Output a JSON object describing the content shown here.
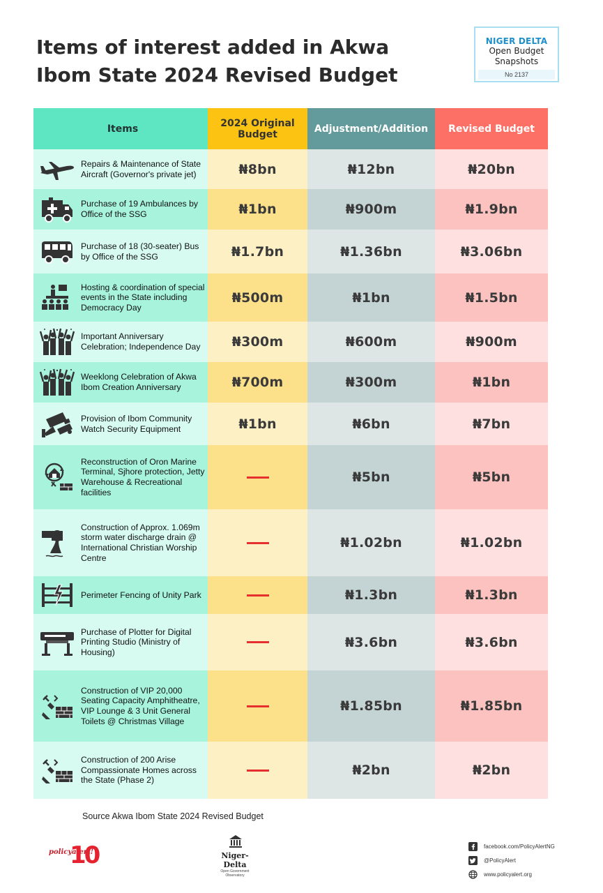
{
  "title": {
    "line1": "Items of interest added in Akwa",
    "line2": "Ibom State 2024 Revised Budget"
  },
  "badge": {
    "line1": "NIGER DELTA",
    "line2": "Open Budget",
    "line3": "Snapshots",
    "number": "No 2137"
  },
  "table": {
    "headers": [
      "Items",
      "2024 Original Budget",
      "Adjustment/Addition",
      "Revised Budget"
    ],
    "rows": [
      {
        "icon": "private-jet-icon",
        "item": "Repairs & Maintenance of State Aircraft (Governor's private jet)",
        "original": "₦8bn",
        "adjustment": "₦12bn",
        "revised": "₦20bn"
      },
      {
        "icon": "ambulance-icon",
        "item": "Purchase of 19 Ambulances by Office of the SSG",
        "original": "₦1bn",
        "adjustment": "₦900m",
        "revised": "₦1.9bn"
      },
      {
        "icon": "bus-icon",
        "item": "Purchase of 18 (30-seater) Bus by Office of the SSG",
        "original": "₦1.7bn",
        "adjustment": "₦1.36bn",
        "revised": "₦3.06bn"
      },
      {
        "icon": "event-audience-icon",
        "item": "Hosting & coordination of special events in the State including Democracy Day",
        "original": "₦500m",
        "adjustment": "₦1bn",
        "revised": "₦1.5bn"
      },
      {
        "icon": "celebration-crowd-icon",
        "item": "Important Anniversary Celebration; Independence Day",
        "original": "₦300m",
        "adjustment": "₦600m",
        "revised": "₦900m"
      },
      {
        "icon": "celebration-crowd-icon",
        "item": "Weeklong Celebration of Akwa Ibom Creation Anniversary",
        "original": "₦700m",
        "adjustment": "₦300m",
        "revised": "₦1bn"
      },
      {
        "icon": "security-camera-icon",
        "item": "Provision of Ibom Community Watch Security Equipment",
        "original": "₦1bn",
        "adjustment": "₦6bn",
        "revised": "₦7bn"
      },
      {
        "icon": "renovation-icon",
        "item": "Reconstruction of Oron Marine Terminal, Sjhore protection, Jetty Warehouse & Recreational facilities",
        "original": "",
        "adjustment": "₦5bn",
        "revised": "₦5bn"
      },
      {
        "icon": "drain-pipe-icon",
        "item": "Construction of Approx. 1.069m storm water discharge drain @ International Christian Worship Centre",
        "original": "",
        "adjustment": "₦1.02bn",
        "revised": "₦1.02bn"
      },
      {
        "icon": "fence-icon",
        "item": "Perimeter Fencing of Unity Park",
        "original": "",
        "adjustment": "₦1.3bn",
        "revised": "₦1.3bn"
      },
      {
        "icon": "plotter-icon",
        "item": "Purchase of Plotter for Digital Printing Studio (Ministry of Housing)",
        "original": "",
        "adjustment": "₦3.6bn",
        "revised": "₦3.6bn"
      },
      {
        "icon": "construction-icon",
        "item": "Construction of VIP 20,000 Seating Capacity Amphitheatre, VIP Lounge & 3 Unit General Toilets @ Christmas Village",
        "original": "",
        "adjustment": "₦1.85bn",
        "revised": "₦1.85bn"
      },
      {
        "icon": "construction-icon",
        "item": "Construction of 200 Arise Compassionate Homes across the State (Phase 2)",
        "original": "",
        "adjustment": "₦2bn",
        "revised": "₦2bn"
      }
    ]
  },
  "source": "Source Akwa Ibom State 2024 Revised Budget",
  "footer": {
    "policy_alert": "policyalert!",
    "policy_alert_years": "10",
    "niger_delta": "Niger-Delta",
    "niger_delta_sub": "Open Government Observatory",
    "facebook": "facebook.com/PolicyAlertNG",
    "twitter": "@PolicyAlert",
    "website": "www.policyalert.org"
  },
  "colors": {
    "items": "#5ee6c2",
    "original": "#fcc313",
    "adjustment": "#639a9b",
    "revised": "#fd7065",
    "dash": "#e63030"
  }
}
